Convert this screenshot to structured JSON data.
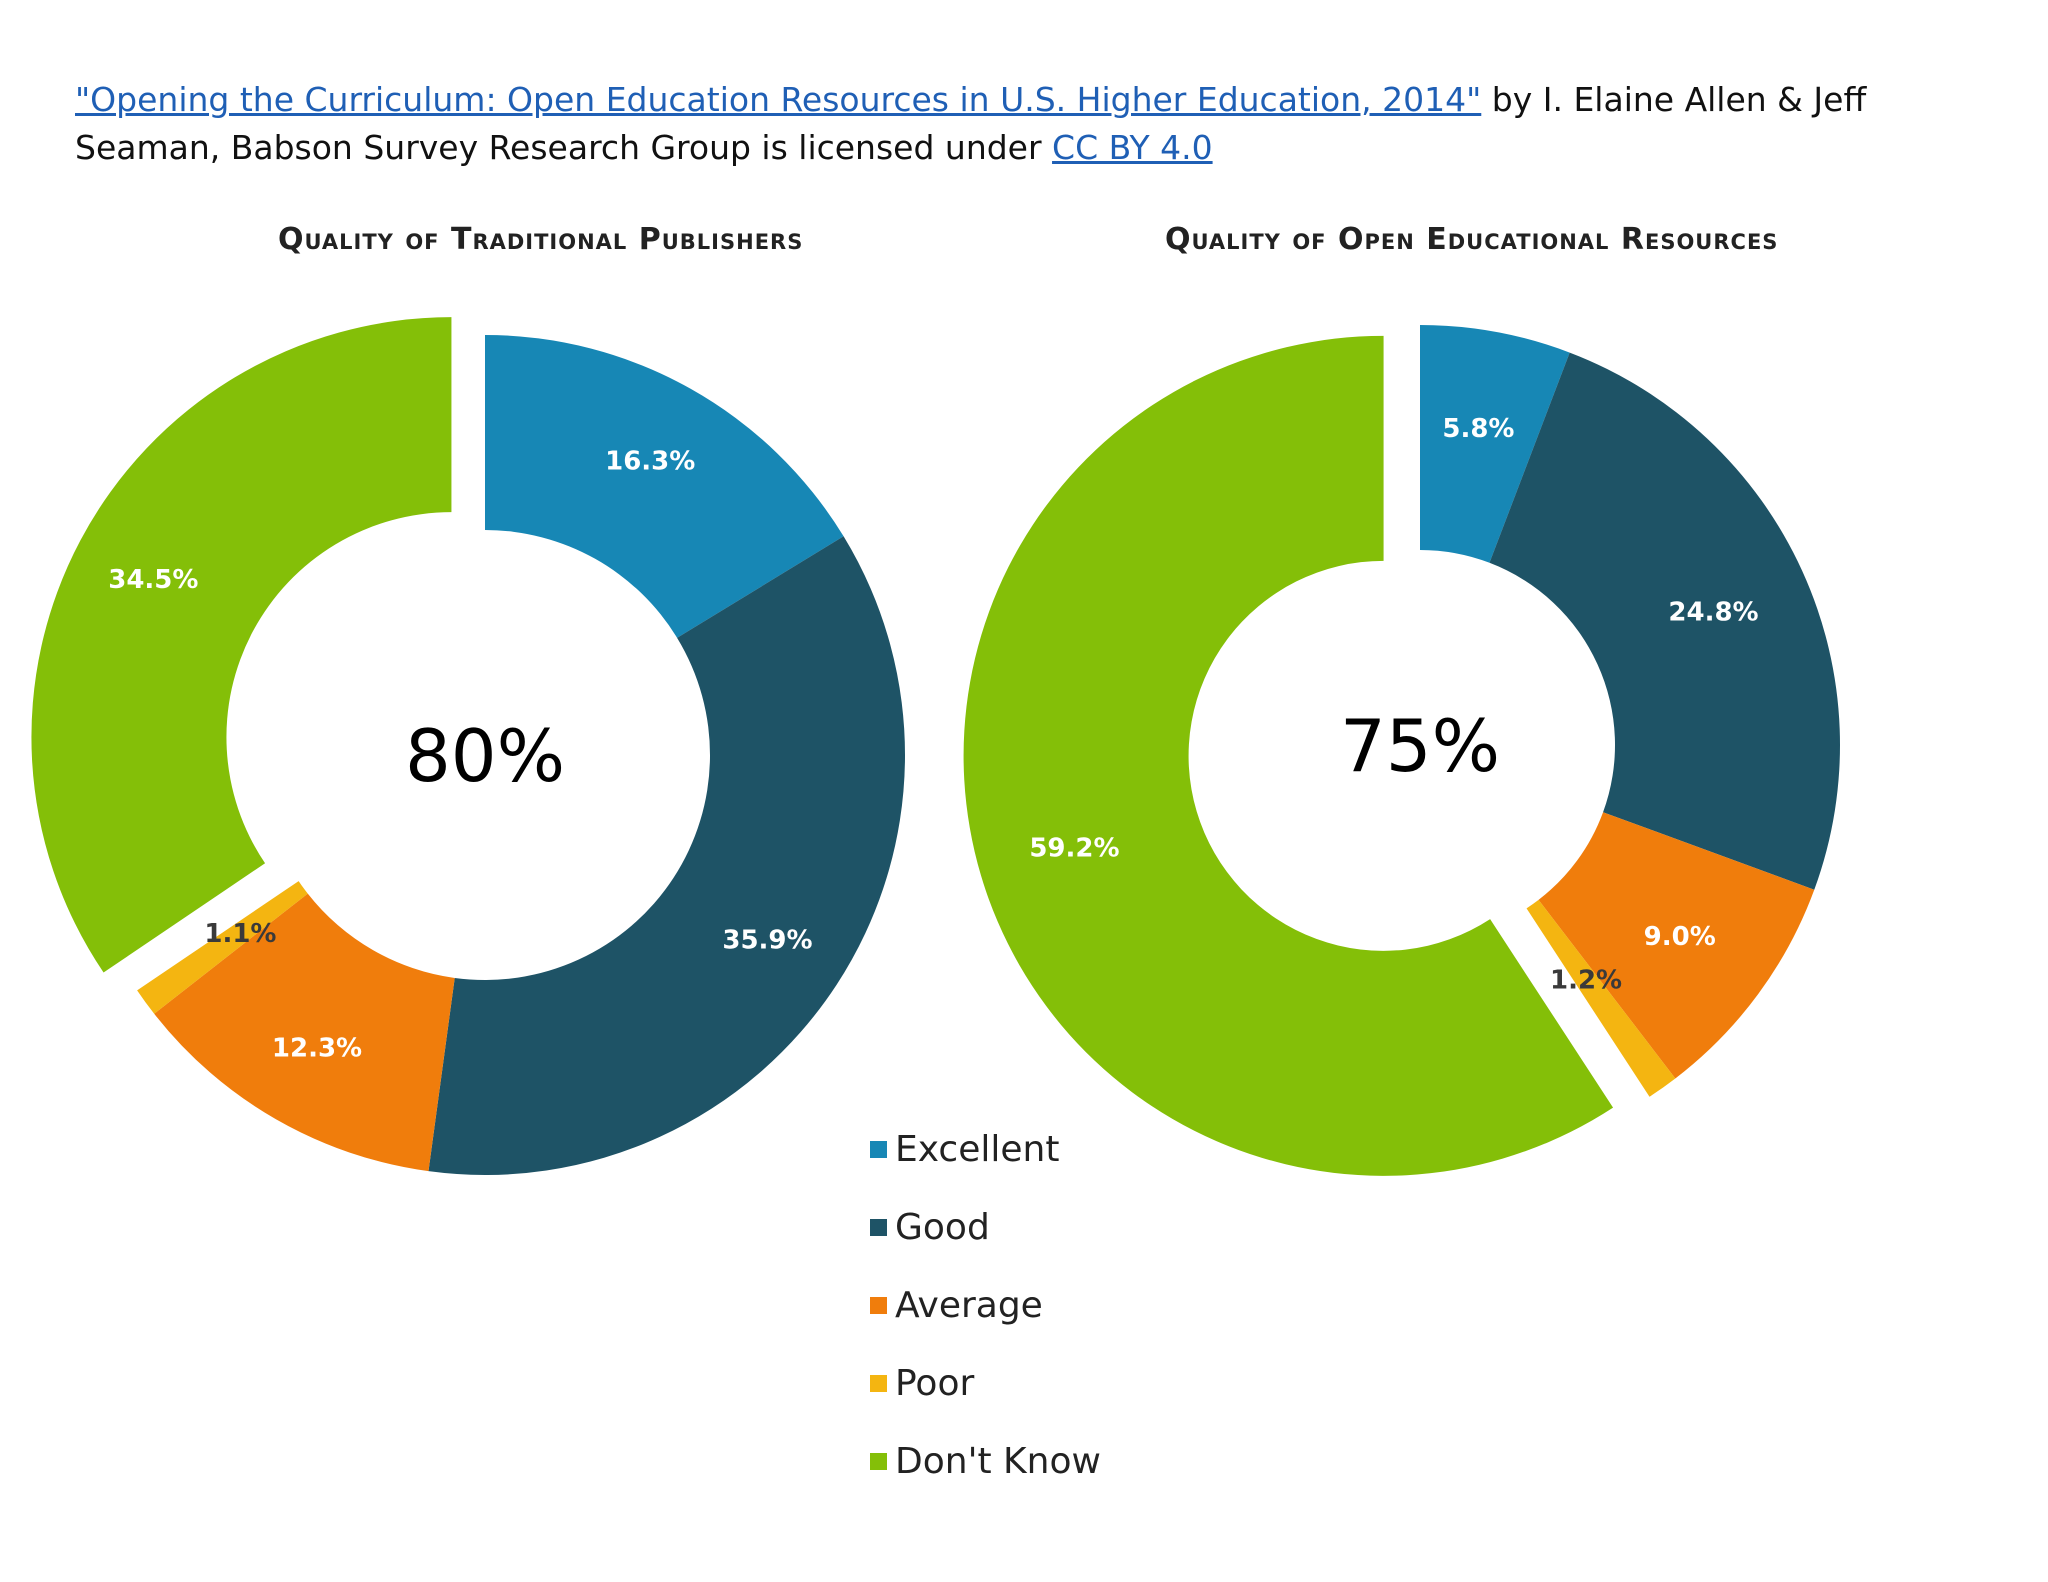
{
  "attribution": {
    "link_text": "\"Opening the Curriculum: Open Education Resources in U.S. Higher Education, 2014\"",
    "text_middle": " by I. Elaine Allen & Jeff Seaman, Babson Survey Research Group is licensed under ",
    "license_link": "CC BY 4.0"
  },
  "colors": {
    "Excellent": "#1787b5",
    "Good": "#1e5366",
    "Average": "#f07d0c",
    "Poor": "#f4b511",
    "Don't Know": "#84bf08"
  },
  "chart_data": [
    {
      "type": "pie",
      "title": "Quality of Traditional Publishers",
      "center_label": "80%",
      "categories": [
        "Excellent",
        "Good",
        "Average",
        "Poor",
        "Don't Know"
      ],
      "values": [
        16.3,
        35.9,
        12.3,
        1.1,
        34.5
      ],
      "labels": [
        "16.3%",
        "35.9%",
        "12.3%",
        "1.1%",
        "34.5%"
      ],
      "exploded": [
        "Don't Know"
      ]
    },
    {
      "type": "pie",
      "title": "Quality of Open Educational Resources",
      "center_label": "75%",
      "categories": [
        "Excellent",
        "Good",
        "Average",
        "Poor",
        "Don't Know"
      ],
      "values": [
        5.8,
        24.8,
        9.0,
        1.2,
        59.2
      ],
      "labels": [
        "5.8%",
        "24.8%",
        "9.0%",
        "1.2%",
        "59.2%"
      ],
      "exploded": [
        "Don't Know"
      ]
    }
  ],
  "legend": [
    "Excellent",
    "Good",
    "Average",
    "Poor",
    "Don't Know"
  ]
}
